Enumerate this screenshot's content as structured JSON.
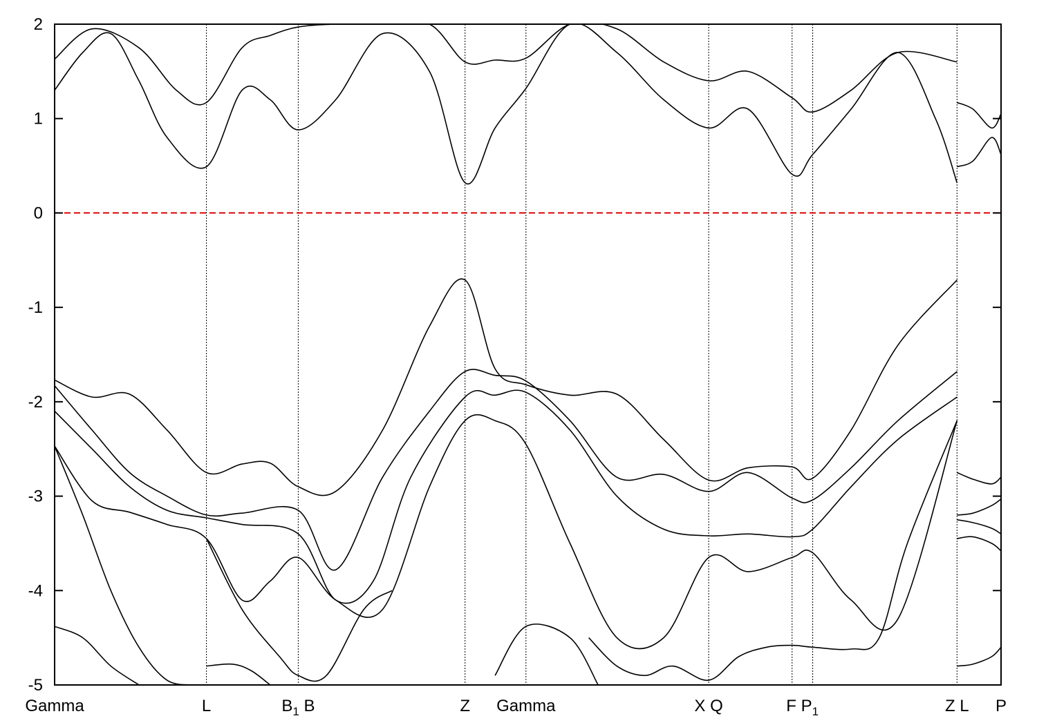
{
  "chart_data": {
    "type": "line",
    "title": "",
    "xlabel": "",
    "ylabel": "",
    "ylim": [
      -5,
      2
    ],
    "yticks": [
      "-5",
      "-4",
      "-3",
      "-2",
      "-1",
      "0",
      "1",
      "2"
    ],
    "ytick_values": [
      -5,
      -4,
      -3,
      -2,
      -1,
      0,
      1,
      2
    ],
    "grid": false,
    "fermi_level": {
      "y": 0,
      "color": "#dd0000",
      "style": "dashed"
    },
    "line_color": "#000000",
    "xlim": [
      0,
      10.1
    ],
    "kpoints": [
      {
        "name": "Gamma",
        "x": 0
      },
      {
        "name": "L",
        "x": 1.62
      },
      {
        "name": "B1",
        "main": "B",
        "sub": "1",
        "x": 2.6
      },
      {
        "name": "B",
        "x": 2.6
      },
      {
        "name": "Z",
        "x": 4.38
      },
      {
        "name": "Gamma",
        "x": 5.03
      },
      {
        "name": "X",
        "x": 6.98
      },
      {
        "name": "Q",
        "x": 6.98
      },
      {
        "name": "F",
        "x": 7.87
      },
      {
        "name": "P1",
        "main": "P",
        "sub": "1",
        "x": 8.09
      },
      {
        "name": "Z",
        "x": 9.63
      },
      {
        "name": "L",
        "x": 9.63
      },
      {
        "name": "P",
        "x": 10.1
      }
    ],
    "xtick_labels": [
      {
        "x": 0,
        "parts": [
          {
            "t": "Gamma"
          }
        ]
      },
      {
        "x": 1.62,
        "parts": [
          {
            "t": "L"
          }
        ]
      },
      {
        "x": 2.6,
        "parts": [
          {
            "t": "B"
          },
          {
            "t": "1",
            "sub": true
          },
          {
            "t": " B"
          }
        ]
      },
      {
        "x": 4.38,
        "parts": [
          {
            "t": "Z"
          }
        ]
      },
      {
        "x": 5.03,
        "parts": [
          {
            "t": "Gamma"
          }
        ]
      },
      {
        "x": 6.98,
        "parts": [
          {
            "t": "X  Q"
          }
        ]
      },
      {
        "x": 7.98,
        "parts": [
          {
            "t": "F P"
          },
          {
            "t": "1",
            "sub": true
          }
        ]
      },
      {
        "x": 9.63,
        "parts": [
          {
            "t": "Z  L"
          }
        ]
      },
      {
        "x": 10.1,
        "parts": [
          {
            "t": "P"
          }
        ]
      }
    ],
    "series": [
      {
        "x": [
          0,
          0.3,
          0.6,
          0.9,
          1.2,
          1.62,
          2.0,
          2.3,
          2.6,
          3.0,
          3.5,
          4.0,
          4.38,
          4.7,
          5.03,
          5.5,
          6.0,
          6.5,
          6.98,
          7.4,
          7.87,
          8.09,
          8.5,
          9.0,
          9.4,
          9.63
        ],
        "y": [
          1.3,
          1.7,
          1.9,
          1.4,
          0.8,
          0.49,
          1.3,
          1.2,
          0.88,
          1.2,
          1.9,
          1.5,
          0.32,
          0.9,
          1.32,
          2.0,
          1.7,
          1.2,
          0.9,
          1.1,
          0.41,
          0.62,
          1.1,
          1.7,
          1.0,
          0.32
        ]
      },
      {
        "x": [
          0,
          0.4,
          0.9,
          1.3,
          1.62,
          2.0,
          2.3,
          2.6,
          3.0,
          3.5,
          4.0,
          4.38,
          4.7,
          5.03,
          5.5,
          6.0,
          6.5,
          6.98,
          7.4,
          7.87,
          8.09,
          8.5,
          9.0,
          9.63
        ],
        "y": [
          1.63,
          1.95,
          1.75,
          1.3,
          1.17,
          1.75,
          1.88,
          1.97,
          2.0,
          2.0,
          2.0,
          1.6,
          1.62,
          1.64,
          2.0,
          1.95,
          1.6,
          1.4,
          1.5,
          1.22,
          1.07,
          1.3,
          1.7,
          1.6
        ]
      },
      {
        "x": [
          0,
          0.4,
          0.8,
          1.2,
          1.62,
          2.0,
          2.3,
          2.6,
          3.0,
          3.5,
          4.0,
          4.38,
          4.7,
          5.03,
          5.5,
          6.0,
          6.5,
          6.98,
          7.4,
          7.87,
          8.09,
          8.5,
          9.0,
          9.63
        ],
        "y": [
          -1.77,
          -1.95,
          -1.92,
          -2.3,
          -2.75,
          -2.66,
          -2.65,
          -2.9,
          -2.95,
          -2.3,
          -1.2,
          -0.71,
          -1.65,
          -1.82,
          -1.93,
          -1.92,
          -2.4,
          -2.83,
          -2.7,
          -2.69,
          -2.81,
          -2.3,
          -1.4,
          -0.71
        ]
      },
      {
        "x": [
          0,
          0.4,
          0.8,
          1.2,
          1.62,
          2.0,
          2.6,
          3.0,
          3.5,
          4.0,
          4.38,
          4.7,
          5.03,
          5.5,
          6.0,
          6.5,
          6.98,
          7.4,
          7.87,
          8.09,
          8.5,
          9.0,
          9.63
        ],
        "y": [
          -1.83,
          -2.3,
          -2.75,
          -3.0,
          -3.2,
          -3.18,
          -3.15,
          -3.78,
          -2.8,
          -2.1,
          -1.68,
          -1.72,
          -1.78,
          -2.2,
          -2.8,
          -2.77,
          -2.95,
          -2.75,
          -3.02,
          -3.04,
          -2.7,
          -2.2,
          -1.68
        ]
      },
      {
        "x": [
          0,
          0.4,
          0.8,
          1.2,
          1.62,
          2.0,
          2.6,
          3.0,
          3.4,
          3.8,
          4.38,
          4.7,
          5.03,
          5.5,
          6.0,
          6.5,
          6.98,
          7.4,
          7.87,
          8.09,
          8.5,
          9.0,
          9.63
        ],
        "y": [
          -2.1,
          -2.5,
          -2.9,
          -3.15,
          -3.23,
          -3.3,
          -3.4,
          -4.1,
          -3.9,
          -2.8,
          -1.95,
          -1.93,
          -1.9,
          -2.3,
          -3.0,
          -3.35,
          -3.42,
          -3.4,
          -3.43,
          -3.35,
          -2.9,
          -2.4,
          -1.95
        ]
      },
      {
        "x": [
          0,
          0.4,
          0.8,
          1.2,
          1.62,
          2.0,
          2.3,
          2.6,
          3.0,
          3.5,
          4.0,
          4.38,
          4.7,
          5.03,
          5.5,
          6.0,
          6.5,
          6.98,
          7.4,
          7.87,
          8.09,
          8.5,
          9.0,
          9.63
        ],
        "y": [
          -2.47,
          -3.05,
          -3.17,
          -3.3,
          -3.45,
          -4.1,
          -3.9,
          -3.65,
          -4.1,
          -4.2,
          -2.9,
          -2.2,
          -2.2,
          -2.45,
          -3.5,
          -4.5,
          -4.5,
          -3.65,
          -3.8,
          -3.65,
          -3.6,
          -4.1,
          -4.3,
          -2.2
        ]
      },
      {
        "x": [
          0,
          0.3,
          0.6,
          0.9,
          1.2,
          1.5
        ],
        "y": [
          -2.47,
          -3.2,
          -4.0,
          -4.6,
          -4.95,
          -5.0
        ]
      },
      {
        "x": [
          0,
          0.3,
          0.6,
          0.9
        ],
        "y": [
          -4.38,
          -4.5,
          -4.8,
          -5.0
        ]
      },
      {
        "x": [
          1.62,
          1.9,
          2.1,
          2.3
        ],
        "y": [
          -4.8,
          -4.78,
          -4.85,
          -5.0
        ]
      },
      {
        "x": [
          1.62,
          2.0,
          2.4,
          2.6,
          2.9,
          3.3,
          3.6
        ],
        "y": [
          -3.45,
          -4.2,
          -4.7,
          -4.9,
          -4.9,
          -4.2,
          -4.0
        ]
      },
      {
        "x": [
          4.7,
          5.03,
          5.5,
          5.8
        ],
        "y": [
          -4.9,
          -4.38,
          -4.5,
          -5.0
        ]
      },
      {
        "x": [
          5.7,
          6.0,
          6.3,
          6.6,
          6.98,
          7.3,
          7.6,
          7.87,
          8.09,
          8.5,
          8.8,
          9.1,
          9.63
        ],
        "y": [
          -4.5,
          -4.8,
          -4.9,
          -4.8,
          -4.95,
          -4.7,
          -4.6,
          -4.58,
          -4.6,
          -4.62,
          -4.5,
          -3.5,
          -2.2
        ]
      },
      {
        "x": [
          9.63,
          9.8,
          10.0,
          10.1
        ],
        "y": [
          1.17,
          1.1,
          0.9,
          1.05
        ]
      },
      {
        "x": [
          9.63,
          9.8,
          10.0,
          10.1
        ],
        "y": [
          0.49,
          0.55,
          0.8,
          0.62
        ]
      },
      {
        "x": [
          9.63,
          9.8,
          10.0,
          10.1
        ],
        "y": [
          -2.75,
          -2.82,
          -2.87,
          -2.8
        ]
      },
      {
        "x": [
          9.63,
          9.8,
          10.0,
          10.1
        ],
        "y": [
          -3.2,
          -3.18,
          -3.1,
          -3.03
        ]
      },
      {
        "x": [
          9.63,
          9.8,
          10.0,
          10.1
        ],
        "y": [
          -3.25,
          -3.28,
          -3.34,
          -3.4
        ]
      },
      {
        "x": [
          9.63,
          9.8,
          10.0,
          10.1
        ],
        "y": [
          -3.45,
          -3.43,
          -3.5,
          -3.58
        ]
      },
      {
        "x": [
          9.63,
          9.8,
          10.0,
          10.1
        ],
        "y": [
          -4.8,
          -4.78,
          -4.7,
          -4.6
        ]
      }
    ]
  }
}
